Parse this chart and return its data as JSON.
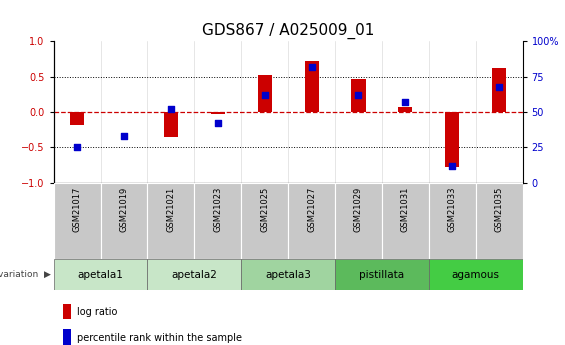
{
  "title": "GDS867 / A025009_01",
  "samples": [
    "GSM21017",
    "GSM21019",
    "GSM21021",
    "GSM21023",
    "GSM21025",
    "GSM21027",
    "GSM21029",
    "GSM21031",
    "GSM21033",
    "GSM21035"
  ],
  "log_ratio": [
    -0.18,
    0.0,
    -0.35,
    -0.02,
    0.52,
    0.72,
    0.47,
    0.07,
    -0.78,
    0.62
  ],
  "percentile": [
    25,
    33,
    52,
    42,
    62,
    82,
    62,
    57,
    12,
    68
  ],
  "groups": [
    {
      "label": "apetala1",
      "indices": [
        0,
        1
      ],
      "color": "#c8e6c8"
    },
    {
      "label": "apetala2",
      "indices": [
        2,
        3
      ],
      "color": "#c8e6c8"
    },
    {
      "label": "apetala3",
      "indices": [
        4,
        5
      ],
      "color": "#a0d4a0"
    },
    {
      "label": "pistillata",
      "indices": [
        6,
        7
      ],
      "color": "#5cba5c"
    },
    {
      "label": "agamous",
      "indices": [
        8,
        9
      ],
      "color": "#44cc44"
    }
  ],
  "bar_color": "#cc0000",
  "dot_color": "#0000cc",
  "sample_bg": "#c8c8c8",
  "ylim_left": [
    -1,
    1
  ],
  "ylim_right": [
    0,
    100
  ],
  "yticks_left": [
    -1,
    -0.5,
    0,
    0.5,
    1
  ],
  "yticks_right": [
    0,
    25,
    50,
    75,
    100
  ],
  "title_fontsize": 11,
  "tick_fontsize": 7,
  "bar_width": 0.3
}
